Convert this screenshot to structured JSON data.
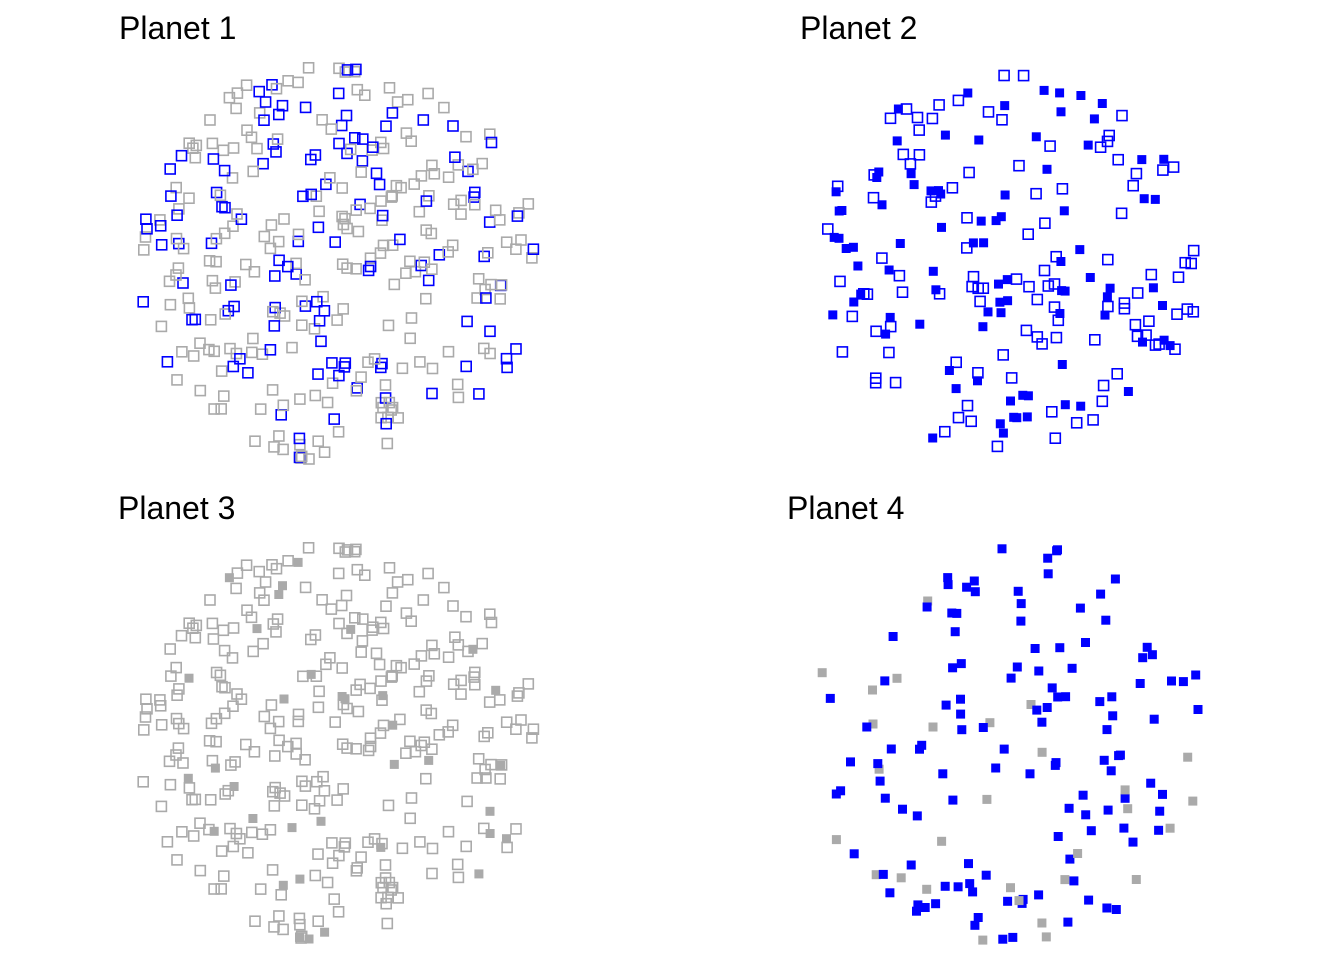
{
  "colors": {
    "blue": "#0000ff",
    "gray": "#aaaaaa"
  },
  "chart_data": [
    {
      "type": "scatter",
      "title": "Planet 1",
      "markers": {
        "blue": "open square, blue",
        "gray": "open square, gray"
      },
      "note": "Points fill a circular region; blue open squares interspersed with gray open squares"
    },
    {
      "type": "scatter",
      "title": "Planet 2",
      "markers": {
        "open": "open square, blue",
        "filled": "filled square, blue"
      },
      "note": "All points blue; roughly half open, half filled"
    },
    {
      "type": "scatter",
      "title": "Planet 3",
      "markers": {
        "open": "open square, gray",
        "filled": "filled square, gray"
      },
      "note": "All points gray; mostly open squares with a few filled"
    },
    {
      "type": "scatter",
      "title": "Planet 4",
      "markers": {
        "blue": "filled square, blue",
        "gray": "filled square, gray"
      },
      "note": "All filled; mostly blue with some gray"
    }
  ]
}
